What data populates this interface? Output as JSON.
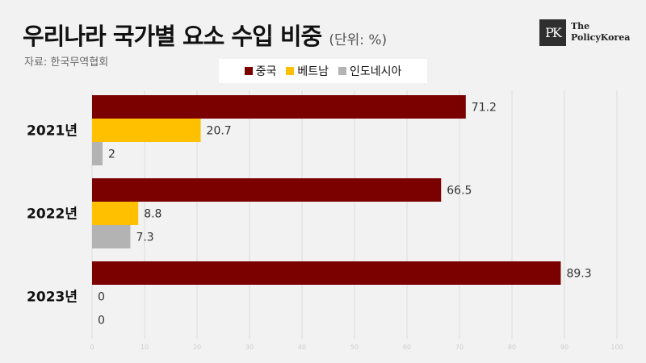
{
  "header": {
    "title": "우리나라 국가별 요소 수입 비중",
    "unit": "(단위: %)",
    "source": "자료: 한국무역협회",
    "logo_line1": "The",
    "logo_line2": "PolicyKorea"
  },
  "colors": {
    "중국": "#7b0000",
    "베트남": "#ffc000",
    "인도네시아": "#b3b3b3"
  },
  "chart_data": {
    "type": "bar",
    "orientation": "horizontal",
    "categories": [
      "2021년",
      "2022년",
      "2023년"
    ],
    "series": [
      {
        "name": "중국",
        "values": [
          71.2,
          66.5,
          89.3
        ]
      },
      {
        "name": "베트남",
        "values": [
          20.7,
          8.8,
          0
        ]
      },
      {
        "name": "인도네시아",
        "values": [
          2,
          7.3,
          0
        ]
      }
    ],
    "xlim": [
      0,
      100
    ],
    "xticks": [
      0,
      10,
      20,
      30,
      40,
      50,
      60,
      70,
      80,
      90,
      100
    ],
    "grid": true,
    "legend_position": "top"
  }
}
